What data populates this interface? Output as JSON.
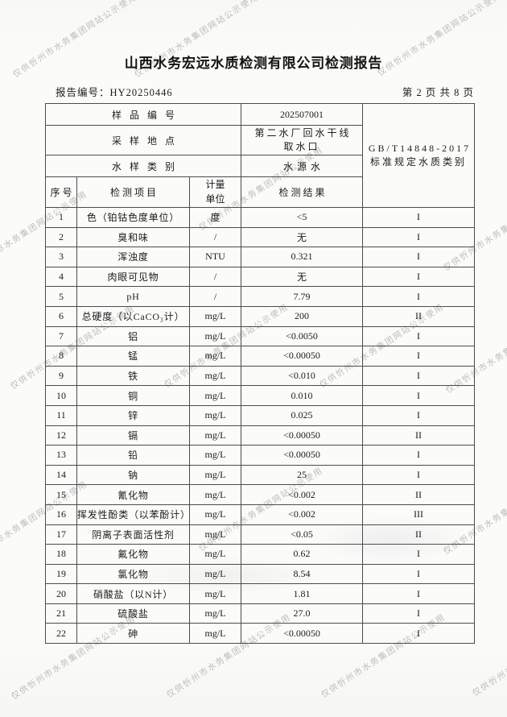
{
  "page": {
    "title": "山西水务宏远水质检测有限公司检测报告",
    "report_no_label": "报告编号：",
    "report_no": "HY20250446",
    "page_indicator": "第 2 页 共 8 页"
  },
  "watermark": {
    "text": "仅供忻州市水务集团网站公示使用",
    "color": "#a6a6a6",
    "positions": [
      [
        17,
        86
      ],
      [
        168,
        86
      ],
      [
        470,
        84
      ],
      [
        -45,
        331
      ],
      [
        248,
        276
      ],
      [
        552,
        326
      ],
      [
        14,
        473
      ],
      [
        205,
        471
      ],
      [
        398,
        471
      ],
      [
        555,
        478
      ],
      [
        -45,
        691
      ],
      [
        248,
        674
      ],
      [
        552,
        678
      ],
      [
        15,
        858
      ],
      [
        208,
        856
      ],
      [
        400,
        856
      ],
      [
        588,
        854
      ]
    ]
  },
  "sample_info": {
    "sample_no_label": "样品编号",
    "sample_no": "202507001",
    "location_label": "采样地点",
    "location": "第二水厂回水干线\n取水口",
    "category_label": "水样类别",
    "category": "水源水",
    "standard": "GB/T14848-2017\n标准规定水质类别"
  },
  "table": {
    "headers": {
      "no": "序号",
      "item": "检测项目",
      "unit": "计量\n单位",
      "result": "检测结果"
    },
    "rows": [
      {
        "no": "1",
        "item": "色（铂钴色度单位）",
        "unit": "度",
        "result": "<5",
        "grade": "I"
      },
      {
        "no": "2",
        "item": "臭和味",
        "unit": "/",
        "result": "无",
        "grade": "I"
      },
      {
        "no": "3",
        "item": "浑浊度",
        "unit": "NTU",
        "result": "0.321",
        "grade": "I"
      },
      {
        "no": "4",
        "item": "肉眼可见物",
        "unit": "/",
        "result": "无",
        "grade": "I"
      },
      {
        "no": "5",
        "item": "pH",
        "unit": "/",
        "result": "7.79",
        "grade": "I"
      },
      {
        "no": "6",
        "item": "总硬度（以CaCO₃计）",
        "unit": "mg/L",
        "result": "200",
        "grade": "II"
      },
      {
        "no": "7",
        "item": "铝",
        "unit": "mg/L",
        "result": "<0.0050",
        "grade": "I"
      },
      {
        "no": "8",
        "item": "锰",
        "unit": "mg/L",
        "result": "<0.00050",
        "grade": "I"
      },
      {
        "no": "9",
        "item": "铁",
        "unit": "mg/L",
        "result": "<0.010",
        "grade": "I"
      },
      {
        "no": "10",
        "item": "铜",
        "unit": "mg/L",
        "result": "0.010",
        "grade": "I"
      },
      {
        "no": "11",
        "item": "锌",
        "unit": "mg/L",
        "result": "0.025",
        "grade": "I"
      },
      {
        "no": "12",
        "item": "镉",
        "unit": "mg/L",
        "result": "<0.00050",
        "grade": "II"
      },
      {
        "no": "13",
        "item": "铅",
        "unit": "mg/L",
        "result": "<0.00050",
        "grade": "I"
      },
      {
        "no": "14",
        "item": "钠",
        "unit": "mg/L",
        "result": "25",
        "grade": "I"
      },
      {
        "no": "15",
        "item": "氰化物",
        "unit": "mg/L",
        "result": "<0.002",
        "grade": "II"
      },
      {
        "no": "16",
        "item": "挥发性酚类（以苯酚计）",
        "unit": "mg/L",
        "result": "<0.002",
        "grade": "III"
      },
      {
        "no": "17",
        "item": "阴离子表面活性剂",
        "unit": "mg/L",
        "result": "<0.05",
        "grade": "II"
      },
      {
        "no": "18",
        "item": "氟化物",
        "unit": "mg/L",
        "result": "0.62",
        "grade": "I"
      },
      {
        "no": "19",
        "item": "氯化物",
        "unit": "mg/L",
        "result": "8.54",
        "grade": "I"
      },
      {
        "no": "20",
        "item": "硝酸盐（以N计）",
        "unit": "mg/L",
        "result": "1.81",
        "grade": "I"
      },
      {
        "no": "21",
        "item": "硫酸盐",
        "unit": "mg/L",
        "result": "27.0",
        "grade": "I"
      },
      {
        "no": "22",
        "item": "砷",
        "unit": "mg/L",
        "result": "<0.00050",
        "grade": "I"
      }
    ]
  }
}
